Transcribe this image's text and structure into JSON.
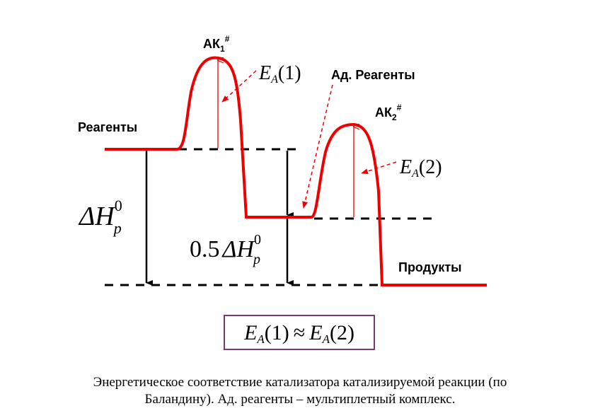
{
  "labels": {
    "ak1": {
      "main": "АК",
      "sub": "1",
      "sup": "#"
    },
    "ea1": {
      "main": "E",
      "sub": "A",
      "tail": "(1)"
    },
    "ad_reagents": "Ад. Реагенты",
    "ak2": {
      "main": "АК",
      "sub": "2",
      "sup": "#"
    },
    "reagents": "Реагенты",
    "ea2": {
      "main": "E",
      "sub": "A",
      "tail": "(2)"
    },
    "dh": {
      "main": "ΔH",
      "sup": "0",
      "sub": "p"
    },
    "half_dh": {
      "coef": "0.5",
      "main": "ΔH",
      "sup": "0",
      "sub": "p"
    },
    "products": "Продукты"
  },
  "formula": {
    "left": {
      "main": "E",
      "sub": "A",
      "tail": "(1)"
    },
    "op": "≈",
    "right": {
      "main": "E",
      "sub": "A",
      "tail": "(2)"
    }
  },
  "caption": [
    "Энергетическое соответствие катализатора катализируемой реакции (по",
    "Баландину). Ад. реагенты – мультиплетный комплекс."
  ]
}
